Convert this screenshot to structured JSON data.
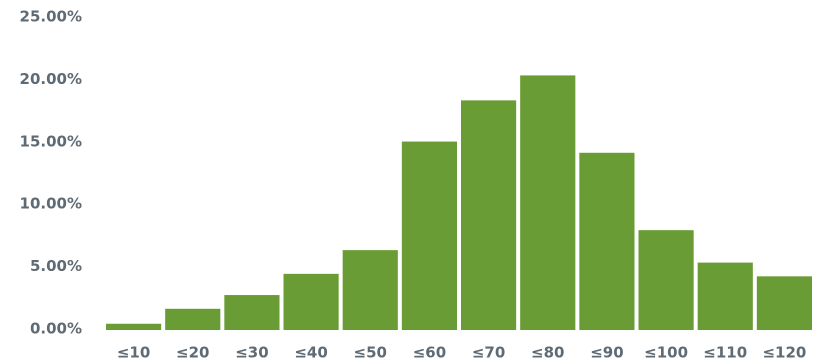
{
  "chart_data": {
    "type": "bar",
    "categories": [
      "≤10",
      "≤20",
      "≤30",
      "≤40",
      "≤50",
      "≤60",
      "≤70",
      "≤80",
      "≤90",
      "≤100",
      "≤110",
      "≤120"
    ],
    "values": [
      0.5,
      1.7,
      2.8,
      4.5,
      6.4,
      15.1,
      18.4,
      20.4,
      14.2,
      8.0,
      5.4,
      4.3
    ],
    "title": "",
    "xlabel": "",
    "ylabel": "",
    "ylim": [
      0,
      25
    ],
    "y_ticks": [
      "0.00%",
      "5.00%",
      "10.00%",
      "15.00%",
      "20.00%",
      "25.00%"
    ],
    "grid": false,
    "bar_color": "#699c35",
    "label_color": "#5f6b74"
  }
}
